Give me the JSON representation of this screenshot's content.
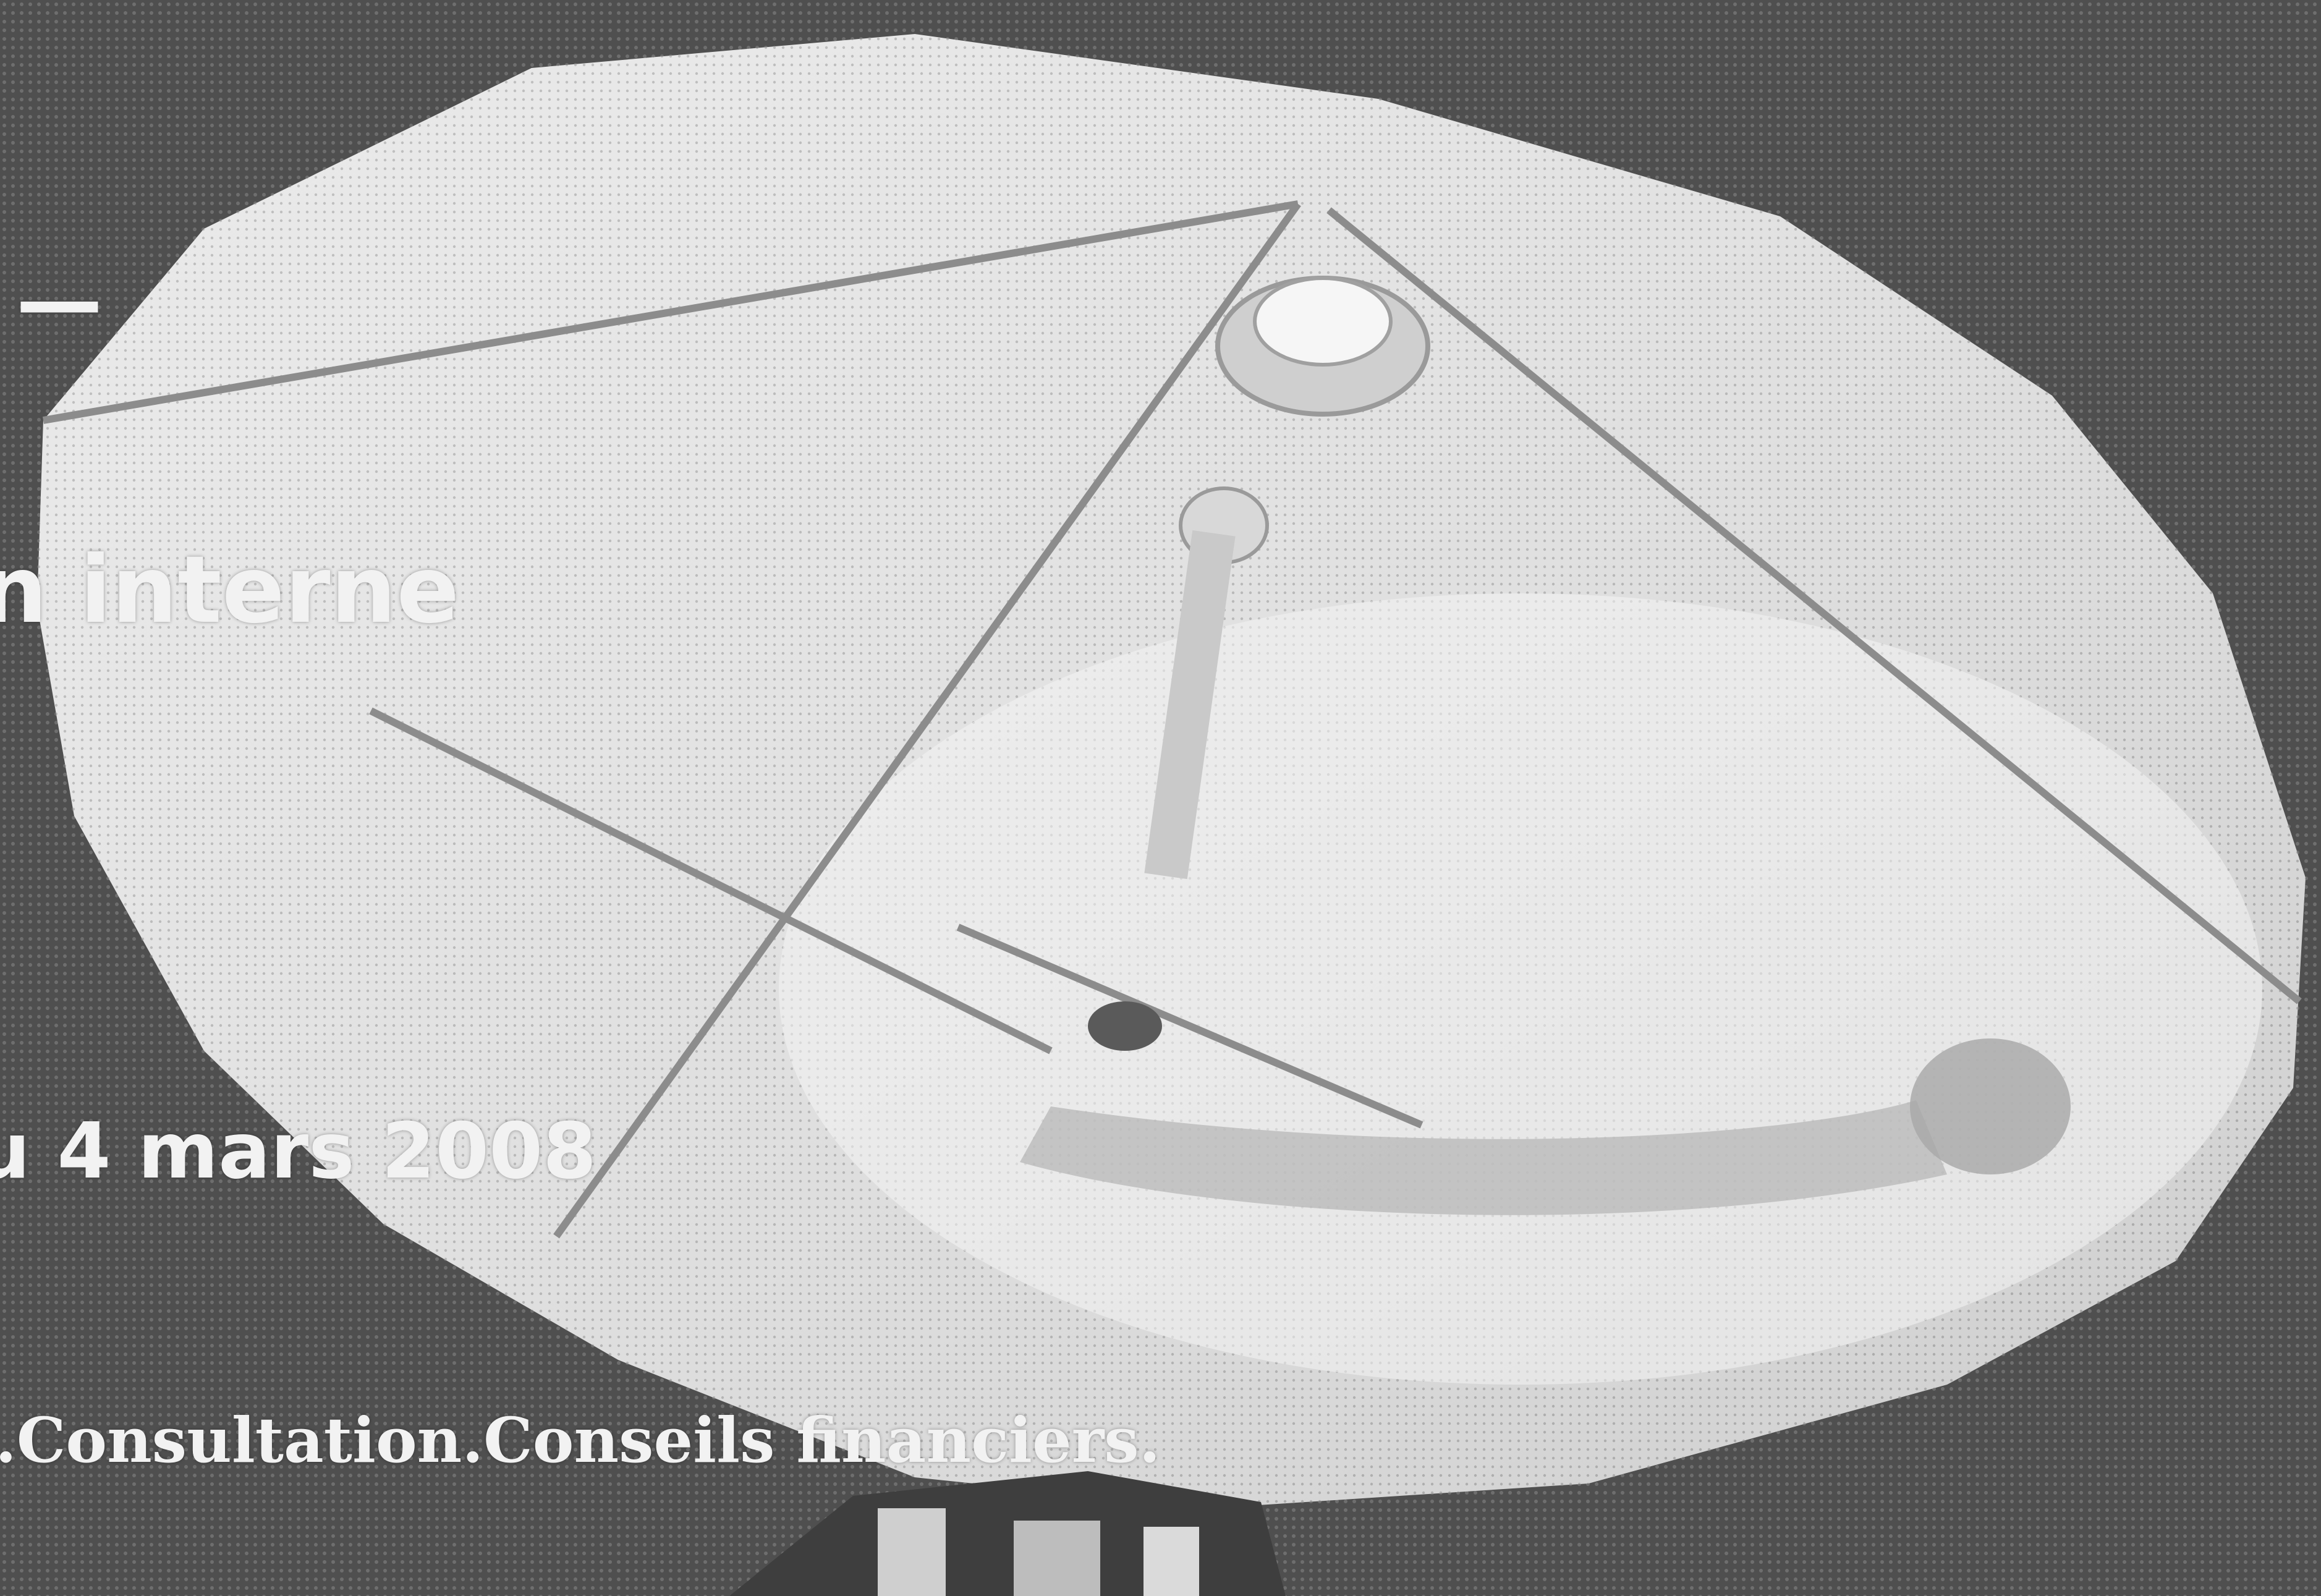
{
  "overlay": {
    "dash": "—",
    "headline": "n interne",
    "date": "u 4 mars 2008",
    "services": ".Consultation.Conseils financiers."
  },
  "colors": {
    "background": "#5a5a5a",
    "dish": "#e9e9e9",
    "text": "#f2f2f2"
  }
}
